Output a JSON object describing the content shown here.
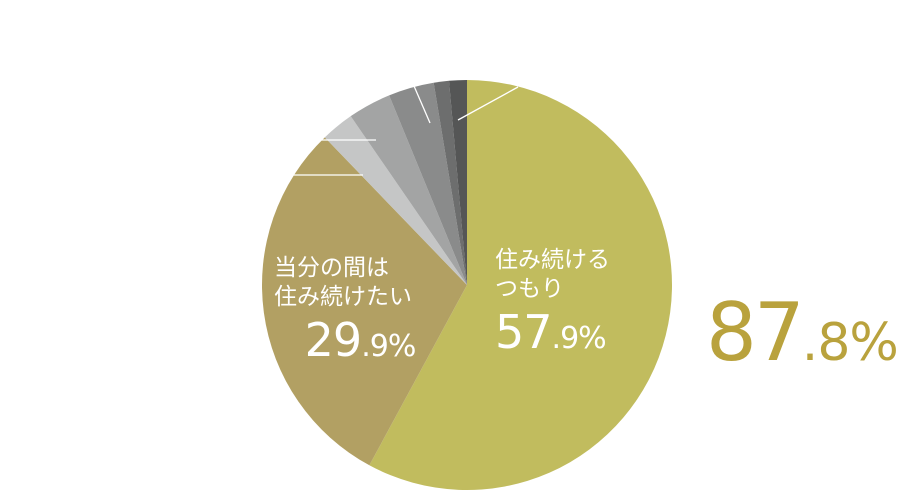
{
  "chart_data": {
    "type": "pie",
    "slices": [
      {
        "value": 57.9,
        "color": "#c1bc5e"
      },
      {
        "value": 29.9,
        "color": "#b2a063"
      },
      {
        "value": 2.6,
        "color": "#c5c6c6"
      },
      {
        "value": 3.4,
        "color": "#a3a4a4"
      },
      {
        "value": 3.6,
        "color": "#8a8b8b"
      },
      {
        "value": 1.2,
        "color": "#6d6e6e"
      },
      {
        "value": 1.4,
        "color": "#555656"
      }
    ],
    "labels": {
      "stay": {
        "line1": "住み続ける",
        "line2": "つもり",
        "pct_int": "57",
        "pct_dec": ".9%"
      },
      "for_now": {
        "line1": "当分の間は",
        "line2": "住み続けたい",
        "pct_int": "29",
        "pct_dec": ".9%"
      }
    },
    "total": {
      "int": "87",
      "dec": ".8%",
      "color": "#b9a23d"
    }
  }
}
